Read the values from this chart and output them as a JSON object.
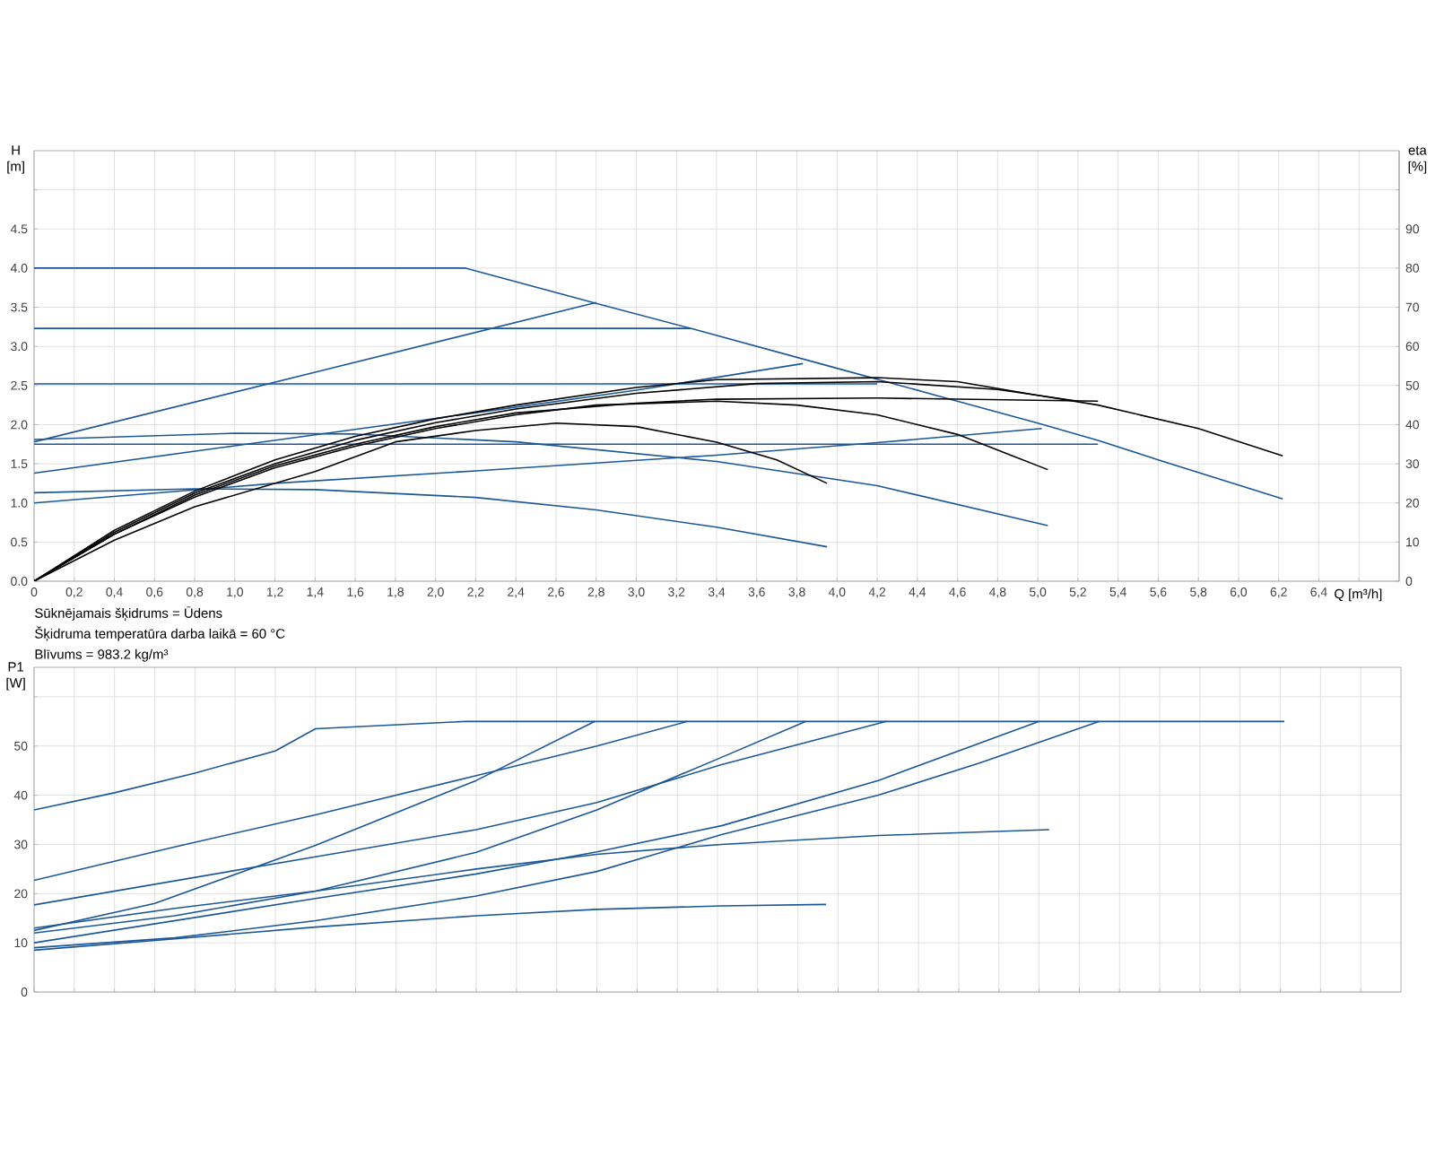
{
  "chart_data": [
    {
      "type": "line",
      "ylabel": "H [m]",
      "y2label": "eta [%]",
      "xlabel": "Q [m³/h]",
      "grid": true,
      "xlim": [
        0,
        6.8
      ],
      "ylim": [
        0,
        5.5
      ],
      "y2lim": [
        0,
        110
      ],
      "xticks": [
        0,
        {
          "value": 0.2,
          "label": "0,2"
        },
        {
          "value": 0.4,
          "label": "0,4"
        },
        {
          "value": 0.6,
          "label": "0,6"
        },
        {
          "value": 0.8,
          "label": "0,8"
        },
        {
          "value": 1.0,
          "label": "1,0"
        },
        {
          "value": 1.2,
          "label": "1,2"
        },
        {
          "value": 1.4,
          "label": "1,4"
        },
        {
          "value": 1.6,
          "label": "1,6"
        },
        {
          "value": 1.8,
          "label": "1,8"
        },
        {
          "value": 2.0,
          "label": "2,0"
        },
        {
          "value": 2.2,
          "label": "2,2"
        },
        {
          "value": 2.4,
          "label": "2,4"
        },
        {
          "value": 2.6,
          "label": "2,6"
        },
        {
          "value": 2.8,
          "label": "2,8"
        },
        {
          "value": 3.0,
          "label": "3,0"
        },
        {
          "value": 3.2,
          "label": "3,2"
        },
        {
          "value": 3.4,
          "label": "3,4"
        },
        {
          "value": 3.6,
          "label": "3,6"
        },
        {
          "value": 3.8,
          "label": "3,8"
        },
        {
          "value": 4.0,
          "label": "4,0"
        },
        {
          "value": 4.2,
          "label": "4,2"
        },
        {
          "value": 4.4,
          "label": "4,4"
        },
        {
          "value": 4.6,
          "label": "4,6"
        },
        {
          "value": 4.8,
          "label": "4,8"
        },
        {
          "value": 5.0,
          "label": "5,0"
        },
        {
          "value": 5.2,
          "label": "5,2"
        },
        {
          "value": 5.4,
          "label": "5,4"
        },
        {
          "value": 5.6,
          "label": "5,6"
        },
        {
          "value": 5.8,
          "label": "5,8"
        },
        {
          "value": 6.0,
          "label": "6,0"
        },
        {
          "value": 6.2,
          "label": "6,2"
        },
        {
          "value": 6.4,
          "label": "6,4"
        },
        {
          "value": 6.6,
          "label": null
        }
      ],
      "yticks": [
        {
          "value": 0,
          "label": "0.0"
        },
        0.5,
        {
          "value": 1,
          "label": "1.0"
        },
        1.5,
        {
          "value": 2,
          "label": "2.0"
        },
        2.5,
        {
          "value": 3,
          "label": "3.0"
        },
        3.5,
        {
          "value": 4,
          "label": "4.0"
        },
        4.5,
        {
          "value": 5,
          "label": null
        }
      ],
      "y2ticks": [
        0,
        10,
        20,
        30,
        40,
        50,
        60,
        70,
        80,
        90,
        {
          "value": 100,
          "label": null
        }
      ],
      "annotations": [
        "Sūknējamais šķidrums = Ūdens",
        "Šķidruma temperatūra darba laikā = 60 °C",
        "Blīvums = 983.2 kg/m³"
      ],
      "series": [
        {
          "color": "#1b5797",
          "x": [
            0,
            2.15,
            2.8,
            3.27,
            4.0,
            4.5,
            5.0,
            5.3,
            5.6,
            6.22
          ],
          "values": [
            4,
            4,
            3.55,
            3.23,
            2.72,
            2.37,
            2.02,
            1.8,
            1.55,
            1.05
          ]
        },
        {
          "color": "#1b5797",
          "x": [
            0,
            3.27
          ],
          "values": [
            3.23,
            3.23
          ]
        },
        {
          "color": "#1b5797",
          "x": [
            0,
            4.2
          ],
          "values": [
            2.52,
            2.52
          ]
        },
        {
          "color": "#1b5797",
          "x": [
            0,
            5.3
          ],
          "values": [
            1.75,
            1.75
          ]
        },
        {
          "color": "#1b5797",
          "x": [
            0,
            1.4,
            2.8
          ],
          "values": [
            1.78,
            2.67,
            3.56
          ]
        },
        {
          "color": "#1b5797",
          "x": [
            0,
            1.0,
            2.0,
            3.0,
            3.83
          ],
          "values": [
            1.38,
            1.73,
            2.08,
            2.44,
            2.78
          ]
        },
        {
          "color": "#1b5797",
          "x": [
            0,
            1.2,
            2.2,
            3.4,
            4.2,
            5.02
          ],
          "values": [
            1.0,
            1.25,
            1.41,
            1.61,
            1.77,
            1.95
          ]
        },
        {
          "color": "#1b5797",
          "x": [
            0,
            1.0,
            1.6,
            2.4,
            3.4,
            4.2,
            5.05
          ],
          "values": [
            1.81,
            1.89,
            1.88,
            1.78,
            1.53,
            1.22,
            0.71
          ]
        },
        {
          "color": "#1b5797",
          "x": [
            0,
            0.8,
            1.4,
            2.2,
            2.8,
            3.4,
            3.95
          ],
          "values": [
            1.13,
            1.18,
            1.17,
            1.07,
            0.91,
            0.69,
            0.44
          ]
        },
        {
          "color": "#000000",
          "axis": "y2",
          "x": [
            0,
            0.4,
            0.8,
            1.2,
            1.6,
            2.0,
            2.4,
            3.0,
            3.4,
            4.2,
            4.6,
            5.0,
            5.3,
            5.8,
            6.22
          ],
          "values": [
            0,
            13,
            23,
            31,
            37,
            41.5,
            45,
            49.5,
            51.5,
            52,
            51,
            47.5,
            45,
            39,
            32
          ]
        },
        {
          "color": "#000000",
          "axis": "y2",
          "x": [
            0,
            0.4,
            0.8,
            1.2,
            1.6,
            2.0,
            2.4,
            3.0,
            3.6,
            4.2,
            4.8,
            5.2
          ],
          "values": [
            0,
            12.5,
            22.5,
            30,
            36,
            40.5,
            44,
            48,
            50.5,
            51,
            49,
            46
          ]
        },
        {
          "color": "#000000",
          "axis": "y2",
          "x": [
            0,
            0.4,
            0.8,
            1.2,
            1.6,
            2.0,
            2.4,
            3.0,
            3.4,
            4.2,
            5.3
          ],
          "values": [
            0,
            12,
            22,
            29.5,
            35,
            39.5,
            43,
            45.5,
            46.5,
            46.8,
            46
          ]
        },
        {
          "color": "#000000",
          "axis": "y2",
          "x": [
            0,
            0.4,
            0.8,
            1.2,
            1.6,
            2.0,
            2.4,
            2.8,
            3.4,
            3.8,
            4.2,
            4.6,
            4.8,
            5.05
          ],
          "values": [
            0,
            12,
            21.5,
            29,
            34.5,
            39,
            42.5,
            45,
            46,
            45,
            42.5,
            37.5,
            33.5,
            28.5
          ]
        },
        {
          "color": "#000000",
          "axis": "y2",
          "x": [
            0,
            0.4,
            0.8,
            1.4,
            1.8,
            2.2,
            2.6,
            3.0,
            3.4,
            3.7,
            3.95
          ],
          "values": [
            0,
            10.5,
            19,
            28,
            35.6,
            38.5,
            40.4,
            39.5,
            35.5,
            31,
            25
          ]
        }
      ]
    },
    {
      "type": "line",
      "ylabel": "P1 [W]",
      "grid": true,
      "tick_labels": "y",
      "xlim": [
        0,
        6.8
      ],
      "ylim": [
        0,
        66
      ],
      "xticks": [
        0,
        0.2,
        0.4,
        0.6,
        0.8,
        1.0,
        1.2,
        1.4,
        1.6,
        1.8,
        2.0,
        2.2,
        2.4,
        2.6,
        2.8,
        3.0,
        3.2,
        3.4,
        3.6,
        3.8,
        4.0,
        4.2,
        4.4,
        4.6,
        4.8,
        5.0,
        5.2,
        5.4,
        5.6,
        5.8,
        6.0,
        6.2,
        6.4,
        6.6
      ],
      "yticks": [
        0,
        10,
        20,
        30,
        40,
        50,
        {
          "value": 60,
          "label": null
        }
      ],
      "series": [
        {
          "color": "#1b5797",
          "x": [
            0,
            0.4,
            0.8,
            1.2,
            1.4,
            2.15,
            6.22
          ],
          "values": [
            37,
            40.5,
            44.5,
            49,
            53.5,
            55,
            55
          ]
        },
        {
          "color": "#1b5797",
          "x": [
            0,
            0.6,
            1.4,
            2.2,
            2.79
          ],
          "values": [
            12.5,
            18,
            29.8,
            43,
            55
          ]
        },
        {
          "color": "#1b5797",
          "x": [
            0,
            0.7,
            1.4,
            2.2,
            2.8,
            3.25
          ],
          "values": [
            22.7,
            29.5,
            36,
            44,
            50,
            55
          ]
        },
        {
          "color": "#1b5797",
          "x": [
            0,
            0.7,
            1.4,
            2.2,
            2.8,
            3.42,
            3.84
          ],
          "values": [
            12,
            15.5,
            20.5,
            28.4,
            37,
            47.7,
            55
          ]
        },
        {
          "color": "#1b5797",
          "x": [
            0,
            1.4,
            2.2,
            2.8,
            3.42,
            4.24
          ],
          "values": [
            17.7,
            27.5,
            33,
            38.5,
            46.2,
            55
          ]
        },
        {
          "color": "#1b5797",
          "x": [
            0,
            0.7,
            1.4,
            2.2,
            2.8,
            3.42,
            4.2,
            5.05
          ],
          "values": [
            13,
            17,
            20.5,
            25,
            28,
            30,
            31.8,
            33
          ]
        },
        {
          "color": "#1b5797",
          "x": [
            0,
            0.7,
            1.4,
            2.2,
            2.8,
            3.42,
            4.2,
            5.0
          ],
          "values": [
            10,
            14.5,
            19,
            24,
            28.5,
            33.8,
            43,
            55
          ]
        },
        {
          "color": "#1b5797",
          "x": [
            0,
            0.7,
            1.4,
            2.2,
            2.8,
            3.42,
            4.2,
            4.7,
            5.3
          ],
          "values": [
            9,
            11,
            14.5,
            19.5,
            24.5,
            32,
            40,
            46.5,
            55
          ]
        },
        {
          "color": "#1b5797",
          "x": [
            0,
            0.7,
            1.4,
            2.2,
            2.8,
            3.42,
            3.94
          ],
          "values": [
            8.5,
            10.8,
            13.2,
            15.5,
            16.8,
            17.5,
            17.8
          ]
        }
      ]
    }
  ]
}
